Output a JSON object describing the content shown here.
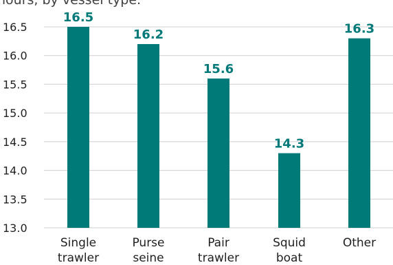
{
  "chart_data": {
    "type": "bar",
    "title": "hours, by vessel type.",
    "categories": [
      [
        "Single",
        "trawler"
      ],
      [
        "Purse",
        "seine"
      ],
      [
        "Pair",
        "trawler"
      ],
      [
        "Squid",
        "boat"
      ],
      [
        "Other"
      ]
    ],
    "values": [
      16.5,
      16.2,
      15.6,
      14.3,
      16.3
    ],
    "value_labels": [
      "16.5",
      "16.2",
      "15.6",
      "14.3",
      "16.3"
    ],
    "ylim": [
      13.0,
      16.5
    ],
    "yticks": [
      13.0,
      13.5,
      14.0,
      14.5,
      15.0,
      15.5,
      16.0,
      16.5
    ],
    "ytick_labels": [
      "13.0",
      "13.5",
      "14.0",
      "14.5",
      "15.0",
      "15.5",
      "16.0",
      "16.5"
    ],
    "grid": true,
    "legend": "none",
    "colors": {
      "bar": "#007a78",
      "label": "#007a78",
      "grid": "#cfcfcf"
    }
  }
}
